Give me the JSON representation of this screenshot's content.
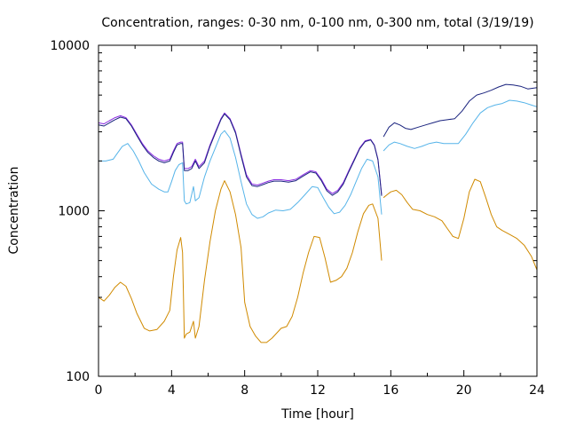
{
  "chart_data": {
    "type": "line",
    "title": "Concentration, ranges: 0-30 nm, 0-100 nm, 0-300 nm, total (3/19/19)",
    "xlabel": "Time [hour]",
    "ylabel": "Concentration",
    "xlim": [
      0,
      24
    ],
    "ylim": [
      100,
      10000
    ],
    "yscale": "log",
    "grid": false,
    "legend": "none",
    "x_ticks": [
      "0",
      "4",
      "8",
      "12",
      "16",
      "20",
      "24"
    ],
    "y_ticks": [
      "100",
      "1000",
      "10000"
    ],
    "series": [
      {
        "color": "#d08a00",
        "x": [
          0,
          0.3,
          0.6,
          0.9,
          1.2,
          1.5,
          1.8,
          2.1,
          2.5,
          2.8,
          3.2,
          3.6,
          3.9,
          4.1,
          4.3,
          4.5,
          4.6,
          4.7,
          4.8,
          5.0,
          5.2,
          5.3,
          5.5,
          5.8,
          6.1,
          6.4,
          6.7,
          6.9,
          7.2,
          7.5,
          7.8,
          8.0,
          8.3,
          8.6,
          8.9,
          9.2,
          9.5,
          10.0,
          10.3,
          10.6,
          10.9,
          11.2,
          11.5,
          11.8,
          12.1,
          12.4,
          12.7,
          13.0,
          13.3,
          13.6,
          13.9,
          14.2,
          14.5,
          14.8,
          15.0,
          15.3,
          15.5
        ],
        "y": [
          300,
          285,
          310,
          345,
          370,
          350,
          295,
          240,
          195,
          188,
          192,
          215,
          250,
          400,
          580,
          690,
          560,
          170,
          180,
          185,
          215,
          170,
          200,
          380,
          650,
          1000,
          1350,
          1520,
          1300,
          950,
          600,
          280,
          200,
          175,
          160,
          160,
          170,
          195,
          200,
          230,
          300,
          420,
          560,
          700,
          690,
          520,
          370,
          380,
          400,
          450,
          560,
          750,
          960,
          1080,
          1100,
          900,
          500
        ]
      },
      {
        "color": "#56b4e9",
        "x": [
          0,
          0.4,
          0.8,
          1.0,
          1.3,
          1.6,
          1.9,
          2.2,
          2.5,
          2.9,
          3.3,
          3.6,
          3.8,
          4.0,
          4.2,
          4.4,
          4.6,
          4.7,
          4.8,
          5.0,
          5.2,
          5.3,
          5.5,
          5.8,
          6.1,
          6.4,
          6.7,
          6.9,
          7.2,
          7.5,
          7.8,
          8.1,
          8.4,
          8.7,
          9.0,
          9.3,
          9.7,
          10.1,
          10.5,
          10.9,
          11.3,
          11.7,
          12.0,
          12.3,
          12.6,
          12.9,
          13.2,
          13.5,
          13.8,
          14.1,
          14.4,
          14.7,
          15.0,
          15.3,
          15.5
        ],
        "y": [
          2000,
          2000,
          2050,
          2200,
          2450,
          2550,
          2300,
          2000,
          1700,
          1450,
          1350,
          1300,
          1300,
          1500,
          1750,
          1900,
          1950,
          1150,
          1100,
          1120,
          1400,
          1150,
          1200,
          1600,
          2000,
          2400,
          2900,
          3050,
          2750,
          2100,
          1500,
          1100,
          950,
          900,
          920,
          970,
          1010,
          1000,
          1020,
          1120,
          1250,
          1400,
          1380,
          1200,
          1050,
          960,
          980,
          1080,
          1250,
          1500,
          1800,
          2050,
          2000,
          1600,
          950
        ]
      },
      {
        "color": "#56b4e9",
        "x": [
          15.6,
          15.9,
          16.2,
          16.5,
          16.9,
          17.3,
          17.7,
          18.1,
          18.5,
          18.9,
          19.3,
          19.7,
          20.1,
          20.5,
          20.9,
          21.3,
          21.7,
          22.1,
          22.5,
          22.9,
          23.3,
          23.7,
          24
        ],
        "y": [
          2300,
          2500,
          2600,
          2550,
          2450,
          2380,
          2450,
          2550,
          2600,
          2550,
          2550,
          2550,
          2900,
          3400,
          3900,
          4200,
          4350,
          4450,
          4650,
          4600,
          4500,
          4350,
          4250
        ]
      },
      {
        "color": "#8a2be2",
        "x": [
          0,
          0.3,
          0.6,
          0.9,
          1.2,
          1.5,
          1.8,
          2.1,
          2.4,
          2.7,
          3.0,
          3.3,
          3.6,
          3.9,
          4.1,
          4.3,
          4.5,
          4.6,
          4.7,
          4.9,
          5.1,
          5.3,
          5.5,
          5.8,
          6.1,
          6.4,
          6.7,
          6.9,
          7.2,
          7.5,
          7.8,
          8.1,
          8.4,
          8.7,
          9.0,
          9.3,
          9.6,
          10.0,
          10.4,
          10.8,
          11.2,
          11.6,
          11.9,
          12.2,
          12.5,
          12.8,
          13.1,
          13.4,
          13.7,
          14.0,
          14.3,
          14.6,
          14.9,
          15.1,
          15.3,
          15.5
        ],
        "y": [
          3400,
          3350,
          3500,
          3650,
          3750,
          3650,
          3300,
          2900,
          2550,
          2300,
          2150,
          2050,
          2000,
          2050,
          2300,
          2550,
          2600,
          2600,
          1800,
          1800,
          1850,
          2050,
          1850,
          2000,
          2500,
          3000,
          3600,
          3900,
          3600,
          3000,
          2200,
          1650,
          1450,
          1430,
          1470,
          1510,
          1540,
          1540,
          1520,
          1550,
          1650,
          1750,
          1720,
          1550,
          1350,
          1270,
          1330,
          1480,
          1750,
          2050,
          2400,
          2650,
          2700,
          2500,
          2050,
          1250
        ]
      },
      {
        "color": "#1a237e",
        "x": [
          0,
          0.3,
          0.6,
          0.9,
          1.2,
          1.5,
          1.8,
          2.1,
          2.4,
          2.7,
          3.0,
          3.3,
          3.6,
          3.9,
          4.1,
          4.3,
          4.5,
          4.6,
          4.7,
          4.9,
          5.1,
          5.3,
          5.5,
          5.8,
          6.1,
          6.4,
          6.7,
          6.9,
          7.2,
          7.5,
          7.8,
          8.1,
          8.4,
          8.7,
          9.0,
          9.3,
          9.6,
          10.0,
          10.4,
          10.8,
          11.2,
          11.6,
          11.9,
          12.2,
          12.5,
          12.8,
          13.1,
          13.4,
          13.7,
          14.0,
          14.3,
          14.6,
          14.9,
          15.1,
          15.3,
          15.5
        ],
        "y": [
          3300,
          3250,
          3400,
          3550,
          3680,
          3600,
          3250,
          2850,
          2500,
          2250,
          2100,
          2000,
          1950,
          2000,
          2250,
          2500,
          2550,
          2550,
          1750,
          1750,
          1800,
          2000,
          1800,
          1950,
          2450,
          2950,
          3550,
          3850,
          3550,
          2950,
          2150,
          1600,
          1420,
          1400,
          1440,
          1480,
          1510,
          1510,
          1490,
          1520,
          1620,
          1720,
          1690,
          1520,
          1320,
          1240,
          1300,
          1450,
          1720,
          2020,
          2370,
          2620,
          2680,
          2480,
          2030,
          1230
        ]
      },
      {
        "color": "#1a237e",
        "x": [
          15.6,
          15.9,
          16.2,
          16.5,
          16.8,
          17.1,
          17.5,
          17.9,
          18.3,
          18.7,
          19.1,
          19.5,
          19.9,
          20.3,
          20.7,
          21.1,
          21.5,
          21.9,
          22.3,
          22.7,
          23.1,
          23.5,
          24
        ],
        "y": [
          2800,
          3200,
          3400,
          3300,
          3150,
          3100,
          3200,
          3300,
          3400,
          3500,
          3550,
          3600,
          4000,
          4600,
          5000,
          5150,
          5350,
          5600,
          5800,
          5750,
          5650,
          5450,
          5550
        ]
      },
      {
        "color": "#d08a00",
        "x": [
          15.6,
          15.8,
          16.0,
          16.3,
          16.6,
          16.9,
          17.2,
          17.6,
          18.0,
          18.4,
          18.8,
          19.1,
          19.4,
          19.7,
          20.0,
          20.3,
          20.6,
          20.9,
          21.2,
          21.5,
          21.8,
          22.1,
          22.5,
          22.9,
          23.3,
          23.7,
          24
        ],
        "y": [
          1200,
          1250,
          1300,
          1330,
          1250,
          1120,
          1020,
          1000,
          950,
          920,
          870,
          780,
          700,
          680,
          900,
          1300,
          1550,
          1500,
          1200,
          950,
          800,
          760,
          720,
          680,
          620,
          530,
          440
        ]
      }
    ]
  }
}
